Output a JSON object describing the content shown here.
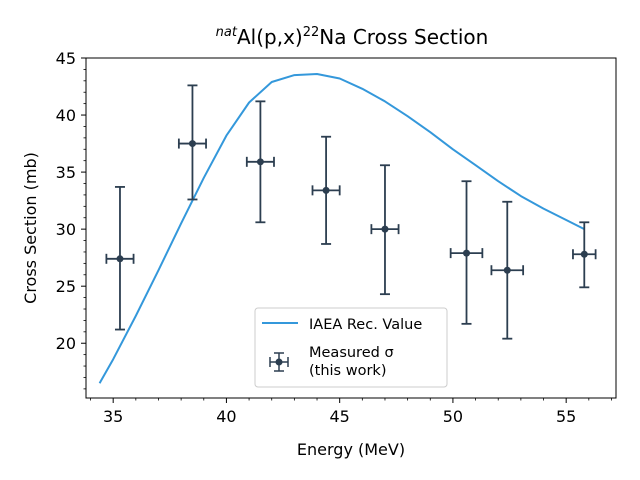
{
  "chart_data": {
    "type": "scatter",
    "title": {
      "prefix": "nat",
      "main": "Al(p,x)",
      "superscript": "22",
      "suffix": "Na Cross Section"
    },
    "xlabel": "Energy (MeV)",
    "ylabel": "Cross Section (mb)",
    "xlim": [
      33.8,
      57.2
    ],
    "ylim": [
      15.2,
      45
    ],
    "xticks": [
      35,
      40,
      45,
      50,
      55
    ],
    "yticks": [
      20,
      25,
      30,
      35,
      40,
      45
    ],
    "grid": false,
    "legend_position": "lower-center",
    "series": [
      {
        "name": "IAEA Rec. Value",
        "kind": "line",
        "color": "#3498db",
        "x": [
          34.4,
          35.0,
          36.0,
          37.0,
          38.0,
          39.0,
          40.0,
          41.0,
          42.0,
          43.0,
          44.0,
          45.0,
          46.0,
          47.0,
          48.0,
          49.0,
          50.0,
          51.0,
          52.0,
          53.0,
          54.0,
          55.0,
          55.8
        ],
        "y": [
          16.5,
          18.6,
          22.4,
          26.4,
          30.5,
          34.5,
          38.2,
          41.1,
          42.9,
          43.5,
          43.6,
          43.2,
          42.3,
          41.2,
          39.9,
          38.5,
          37.0,
          35.6,
          34.2,
          32.9,
          31.8,
          30.8,
          30.0
        ]
      },
      {
        "name": "Measured σ\n(this work)",
        "legend_lines": [
          "Measured σ",
          "(this work)"
        ],
        "kind": "errorbar",
        "color": "#2c3e50",
        "x": [
          35.3,
          38.5,
          41.5,
          44.4,
          47.0,
          50.6,
          52.4,
          55.8
        ],
        "y": [
          27.4,
          37.5,
          35.9,
          33.4,
          30.0,
          27.9,
          26.4,
          27.8
        ],
        "xerr": [
          0.6,
          0.6,
          0.6,
          0.6,
          0.6,
          0.7,
          0.7,
          0.5
        ],
        "yerr_low": [
          6.2,
          4.9,
          5.3,
          4.7,
          5.7,
          6.2,
          6.0,
          2.9
        ],
        "yerr_high": [
          6.3,
          5.1,
          5.3,
          4.7,
          5.6,
          6.3,
          6.0,
          2.8
        ]
      }
    ]
  }
}
